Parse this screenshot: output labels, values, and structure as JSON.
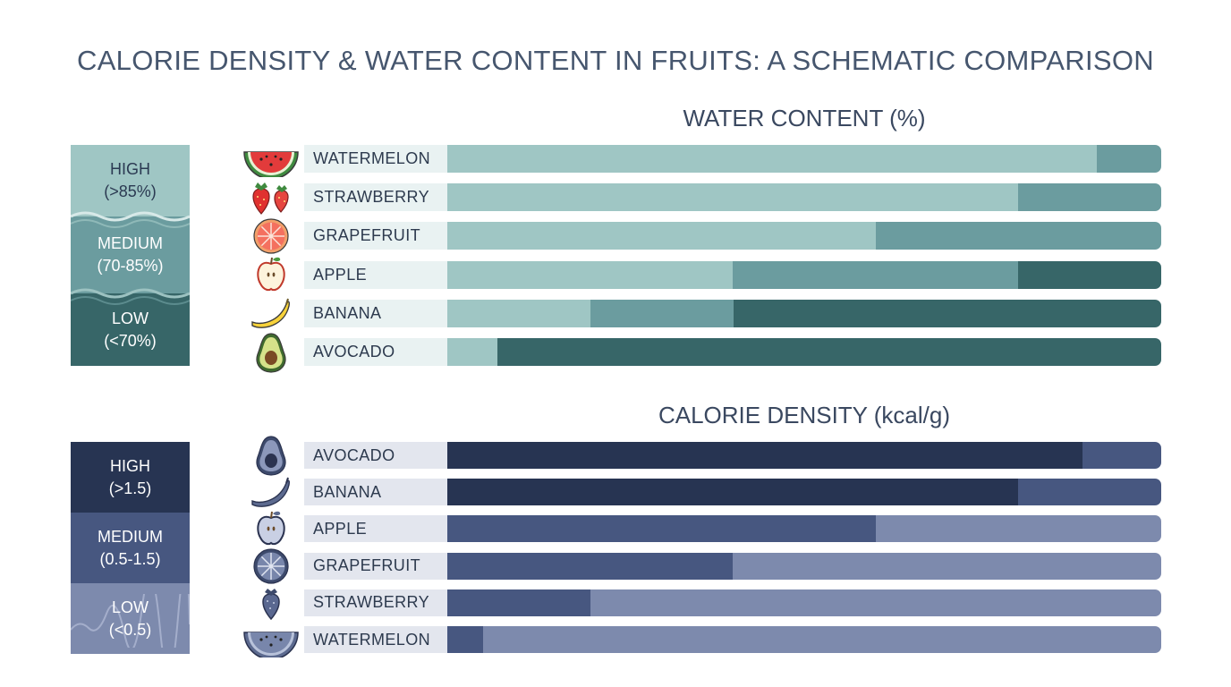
{
  "title": "CALORIE DENSITY & WATER CONTENT IN FRUITS: A SCHEMATIC COMPARISON",
  "chart_data": [
    {
      "type": "bar",
      "title": "WATER CONTENT (%)",
      "legend": [
        {
          "label": "HIGH",
          "range": "(>85%)",
          "color": "#9fc6c4"
        },
        {
          "label": "MEDIUM",
          "range": "(70-85%)",
          "color": "#6b9c9f"
        },
        {
          "label": "LOW",
          "range": "(<70%)",
          "color": "#376668"
        }
      ],
      "categories": [
        "WATERMELON",
        "STRAWBERRY",
        "GRAPEFRUIT",
        "APPLE",
        "BANANA",
        "AVOCADO"
      ],
      "icons": [
        "watermelon-icon",
        "strawberry-icon",
        "grapefruit-icon",
        "apple-icon",
        "banana-icon",
        "avocado-icon"
      ],
      "series": [
        {
          "name": "HIGH",
          "values": [
            0.91,
            0.8,
            0.6,
            0.4,
            0.2,
            0.07
          ]
        },
        {
          "name": "MEDIUM",
          "values": [
            0.09,
            0.2,
            0.4,
            0.4,
            0.2,
            0.0
          ]
        },
        {
          "name": "LOW",
          "values": [
            0.0,
            0.0,
            0.0,
            0.2,
            0.6,
            0.93
          ]
        }
      ],
      "xlim": [
        0,
        1
      ]
    },
    {
      "type": "bar",
      "title": "CALORIE DENSITY (kcal/g)",
      "legend": [
        {
          "label": "HIGH",
          "range": "(>1.5)",
          "color": "#273452"
        },
        {
          "label": "MEDIUM",
          "range": "(0.5-1.5)",
          "color": "#475780"
        },
        {
          "label": "LOW",
          "range": "(<0.5)",
          "color": "#7d8aad"
        }
      ],
      "categories": [
        "AVOCADO",
        "BANANA",
        "APPLE",
        "GRAPEFRUIT",
        "STRAWBERRY",
        "WATERMELON"
      ],
      "icons": [
        "avocado-icon",
        "banana-icon",
        "apple-icon",
        "grapefruit-icon",
        "strawberry-icon",
        "watermelon-icon"
      ],
      "series": [
        {
          "name": "HIGH",
          "values": [
            0.89,
            0.8,
            0.0,
            0.0,
            0.0,
            0.0
          ]
        },
        {
          "name": "MEDIUM",
          "values": [
            0.11,
            0.2,
            0.6,
            0.4,
            0.2,
            0.05
          ]
        },
        {
          "name": "LOW",
          "values": [
            0.0,
            0.0,
            0.4,
            0.6,
            0.8,
            0.95
          ]
        }
      ],
      "xlim": [
        0,
        1
      ]
    }
  ]
}
